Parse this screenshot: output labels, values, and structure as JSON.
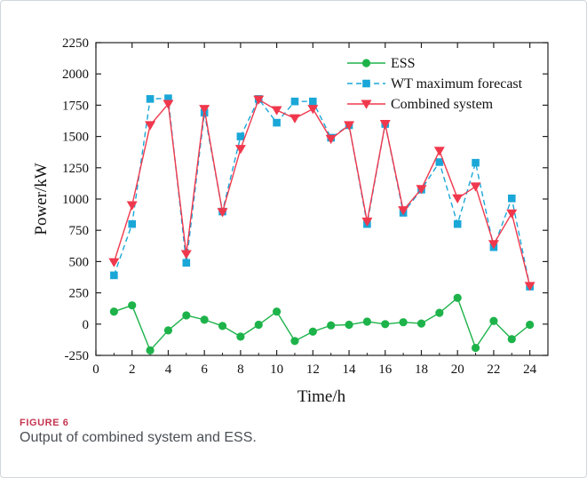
{
  "figure": {
    "label": "FIGURE 6",
    "caption": "Output of combined system and ESS."
  },
  "chart_data": {
    "type": "line",
    "xlabel": "Time/h",
    "ylabel": "Power/kW",
    "xlim": [
      0,
      25
    ],
    "ylim": [
      -250,
      2250
    ],
    "xticks": [
      0,
      2,
      4,
      6,
      8,
      10,
      12,
      14,
      16,
      18,
      20,
      22,
      24
    ],
    "yticks": [
      -250,
      0,
      250,
      500,
      750,
      1000,
      1250,
      1500,
      1750,
      2000,
      2250
    ],
    "legend_position": "top-right",
    "x": [
      1,
      2,
      3,
      4,
      5,
      6,
      7,
      8,
      9,
      10,
      11,
      12,
      13,
      14,
      15,
      16,
      17,
      18,
      19,
      20,
      21,
      22,
      23,
      24
    ],
    "series": [
      {
        "name": "ESS",
        "color": "#1db34a",
        "marker": "circle",
        "line": "solid",
        "values": [
          100,
          150,
          -210,
          -50,
          70,
          35,
          -15,
          -100,
          -5,
          100,
          -135,
          -60,
          -10,
          -5,
          20,
          0,
          15,
          5,
          90,
          210,
          -190,
          25,
          -120,
          -5
        ]
      },
      {
        "name": "WT maximum forecast",
        "color": "#1aa7d8",
        "marker": "square",
        "line": "dashed",
        "values": [
          390,
          800,
          1800,
          1805,
          490,
          1690,
          900,
          1500,
          1800,
          1610,
          1780,
          1780,
          1490,
          1590,
          800,
          1600,
          890,
          1075,
          1295,
          800,
          1290,
          615,
          1005,
          300
        ]
      },
      {
        "name": "Combined system",
        "color": "#f0384d",
        "marker": "triangle-down",
        "line": "solid",
        "values": [
          495,
          950,
          1590,
          1760,
          560,
          1720,
          895,
          1400,
          1795,
          1710,
          1645,
          1720,
          1480,
          1590,
          820,
          1600,
          910,
          1080,
          1385,
          1005,
          1100,
          640,
          885,
          305
        ]
      }
    ]
  }
}
